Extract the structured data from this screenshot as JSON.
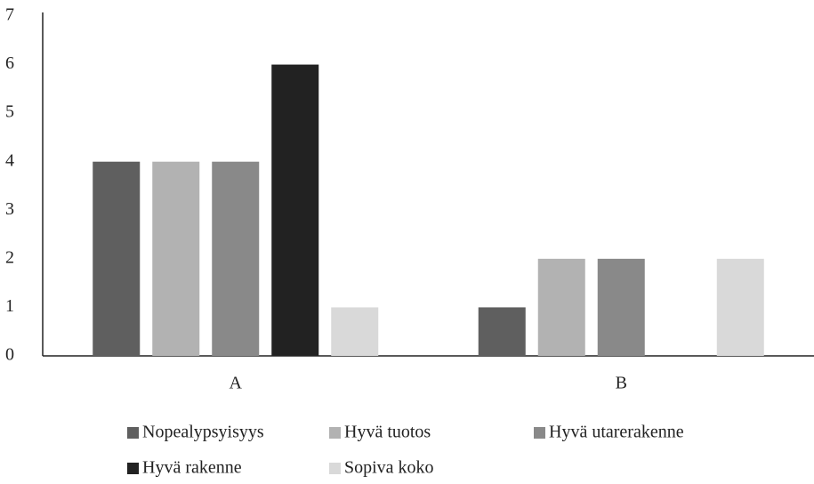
{
  "chart_data": {
    "type": "bar",
    "categories": [
      "A",
      "B"
    ],
    "series": [
      {
        "name": "Nopealypsyisyys",
        "color": "#5f5f5f",
        "values": [
          4,
          1
        ]
      },
      {
        "name": "Hyvä tuotos",
        "color": "#b2b2b2",
        "values": [
          4,
          2
        ]
      },
      {
        "name": "Hyvä utarerakenne",
        "color": "#898989",
        "values": [
          4,
          2
        ]
      },
      {
        "name": "Hyvä rakenne",
        "color": "#222222",
        "values": [
          6,
          0
        ]
      },
      {
        "name": "Sopiva koko",
        "color": "#d9d9d9",
        "values": [
          1,
          2
        ]
      }
    ],
    "ylim": [
      0,
      7
    ],
    "yticks": [
      0,
      1,
      2,
      3,
      4,
      5,
      6,
      7
    ],
    "grid": false,
    "legend": "bottom"
  }
}
